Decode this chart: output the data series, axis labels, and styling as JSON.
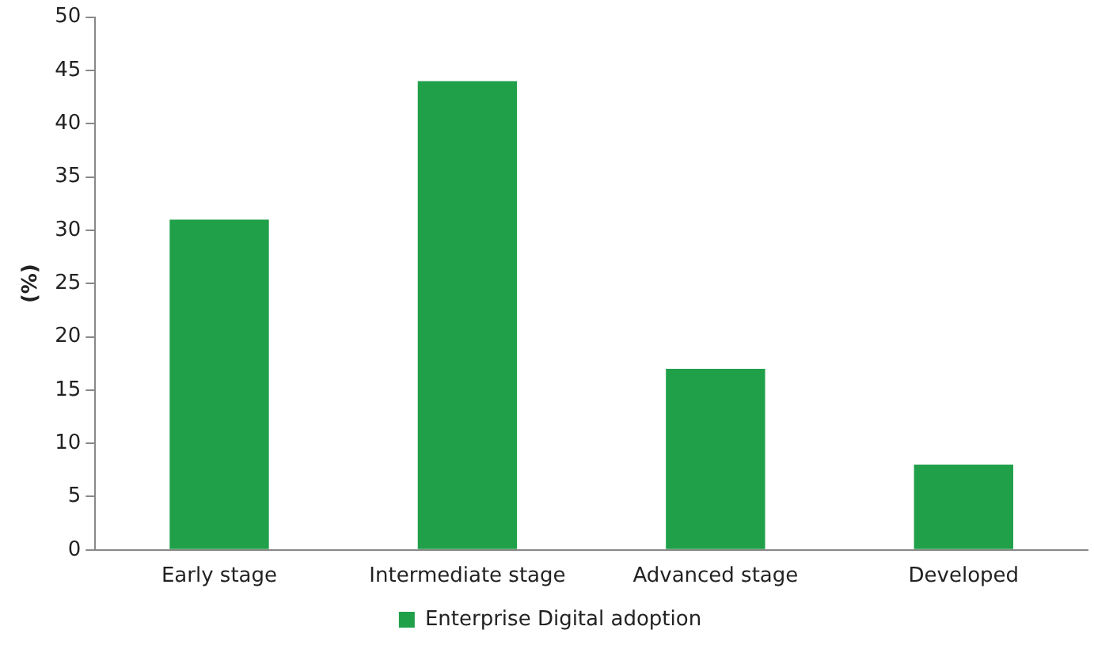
{
  "chart_data": {
    "type": "bar",
    "ylabel": "(%)",
    "categories": [
      "Early stage",
      "Intermediate stage",
      "Advanced stage",
      "Developed"
    ],
    "series": [
      {
        "name": "Enterprise Digital adoption",
        "color": "#21a04a",
        "values": [
          31,
          44,
          17,
          8
        ]
      }
    ],
    "ylim": [
      0,
      50
    ],
    "yticks": [
      0,
      5,
      10,
      15,
      20,
      25,
      30,
      35,
      40,
      45,
      50
    ],
    "grid": false,
    "legend": "bottom"
  }
}
